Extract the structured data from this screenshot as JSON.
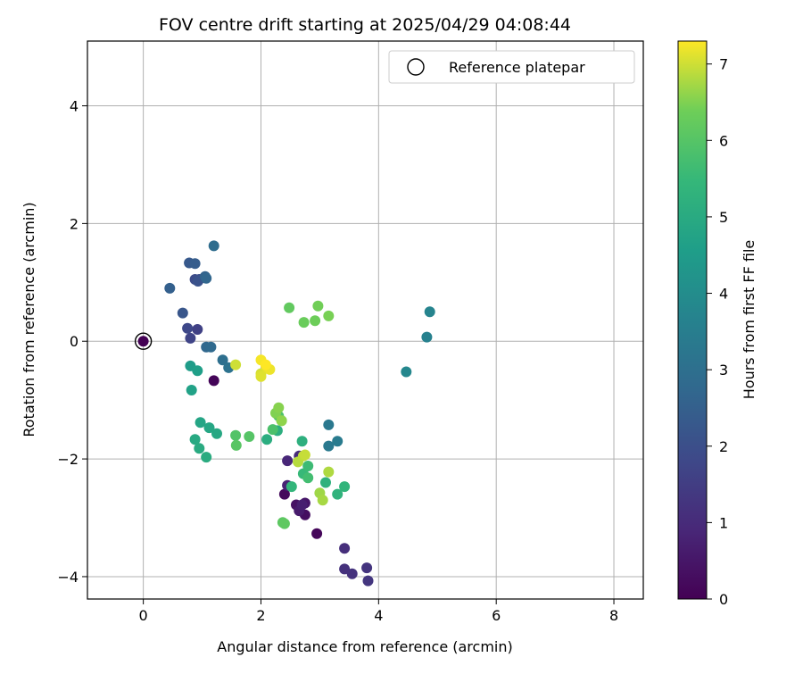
{
  "chart_data": {
    "type": "scatter",
    "title": "FOV centre drift starting at 2025/04/29 04:08:44",
    "xlabel": "Angular distance from reference (arcmin)",
    "ylabel": "Rotation from reference (arcmin)",
    "colorbar_label": "Hours from first FF file",
    "xlim": [
      -0.95,
      8.5
    ],
    "ylim": [
      -4.38,
      5.1
    ],
    "xticks": [
      0,
      2,
      4,
      6,
      8
    ],
    "yticks": [
      -4,
      -2,
      0,
      2,
      4
    ],
    "colorbar_range": [
      0,
      7.3
    ],
    "colorbar_ticks": [
      0,
      1,
      2,
      3,
      4,
      5,
      6,
      7
    ],
    "colormap": "viridis",
    "grid": true,
    "legend_position": "top-right",
    "legend": [
      {
        "label": "Reference platepar",
        "marker": "open-circle"
      }
    ],
    "reference_point": {
      "x": 0,
      "y": 0
    },
    "points": [
      {
        "x": 0.0,
        "y": 0.0,
        "t": 0.0
      },
      {
        "x": 1.2,
        "y": -0.67,
        "t": 0.1
      },
      {
        "x": 2.95,
        "y": -3.27,
        "t": 0.15
      },
      {
        "x": 2.4,
        "y": -2.6,
        "t": 0.2
      },
      {
        "x": 2.75,
        "y": -2.95,
        "t": 0.3
      },
      {
        "x": 2.6,
        "y": -2.78,
        "t": 0.4
      },
      {
        "x": 2.75,
        "y": -2.75,
        "t": 0.5
      },
      {
        "x": 2.65,
        "y": -2.88,
        "t": 0.6
      },
      {
        "x": 2.7,
        "y": -2.78,
        "t": 0.7
      },
      {
        "x": 2.45,
        "y": -2.45,
        "t": 0.8
      },
      {
        "x": 2.45,
        "y": -2.03,
        "t": 0.9
      },
      {
        "x": 2.65,
        "y": -1.95,
        "t": 1.0
      },
      {
        "x": 3.42,
        "y": -3.52,
        "t": 1.1
      },
      {
        "x": 3.42,
        "y": -3.87,
        "t": 1.15
      },
      {
        "x": 3.55,
        "y": -3.95,
        "t": 1.2
      },
      {
        "x": 3.8,
        "y": -3.85,
        "t": 1.25
      },
      {
        "x": 3.82,
        "y": -4.07,
        "t": 1.3
      },
      {
        "x": 0.92,
        "y": 0.2,
        "t": 1.6
      },
      {
        "x": 0.8,
        "y": 0.05,
        "t": 1.7
      },
      {
        "x": 0.75,
        "y": 0.22,
        "t": 1.8
      },
      {
        "x": 0.88,
        "y": 1.05,
        "t": 1.9
      },
      {
        "x": 0.95,
        "y": 1.05,
        "t": 2.0
      },
      {
        "x": 0.93,
        "y": 1.02,
        "t": 2.1
      },
      {
        "x": 0.67,
        "y": 0.48,
        "t": 2.2
      },
      {
        "x": 0.78,
        "y": 1.33,
        "t": 2.3
      },
      {
        "x": 0.88,
        "y": 1.32,
        "t": 2.4
      },
      {
        "x": 0.45,
        "y": 0.9,
        "t": 2.5
      },
      {
        "x": 1.05,
        "y": 1.1,
        "t": 2.6
      },
      {
        "x": 1.07,
        "y": 1.07,
        "t": 2.7
      },
      {
        "x": 1.07,
        "y": -0.1,
        "t": 2.75
      },
      {
        "x": 1.15,
        "y": -0.1,
        "t": 2.8
      },
      {
        "x": 1.2,
        "y": 1.62,
        "t": 2.9
      },
      {
        "x": 1.35,
        "y": -0.32,
        "t": 3.0
      },
      {
        "x": 1.45,
        "y": -0.45,
        "t": 3.1
      },
      {
        "x": 3.15,
        "y": -1.42,
        "t": 3.3
      },
      {
        "x": 3.15,
        "y": -1.78,
        "t": 3.35
      },
      {
        "x": 3.3,
        "y": -1.7,
        "t": 3.4
      },
      {
        "x": 4.82,
        "y": 0.07,
        "t": 3.6
      },
      {
        "x": 4.87,
        "y": 0.5,
        "t": 3.7
      },
      {
        "x": 4.47,
        "y": -0.52,
        "t": 3.8
      },
      {
        "x": 0.8,
        "y": -0.42,
        "t": 4.5
      },
      {
        "x": 0.92,
        "y": -0.5,
        "t": 4.6
      },
      {
        "x": 0.82,
        "y": -0.83,
        "t": 4.7
      },
      {
        "x": 0.97,
        "y": -1.38,
        "t": 4.8
      },
      {
        "x": 1.12,
        "y": -1.47,
        "t": 4.85
      },
      {
        "x": 1.25,
        "y": -1.57,
        "t": 4.9
      },
      {
        "x": 0.88,
        "y": -1.67,
        "t": 4.95
      },
      {
        "x": 0.95,
        "y": -1.82,
        "t": 5.0
      },
      {
        "x": 1.07,
        "y": -1.97,
        "t": 5.05
      },
      {
        "x": 2.1,
        "y": -1.67,
        "t": 5.1
      },
      {
        "x": 2.28,
        "y": -1.52,
        "t": 5.15
      },
      {
        "x": 2.7,
        "y": -1.7,
        "t": 5.2
      },
      {
        "x": 3.1,
        "y": -2.4,
        "t": 5.25
      },
      {
        "x": 3.3,
        "y": -2.6,
        "t": 5.3
      },
      {
        "x": 3.42,
        "y": -2.47,
        "t": 5.35
      },
      {
        "x": 2.52,
        "y": -2.47,
        "t": 5.4
      },
      {
        "x": 2.72,
        "y": -2.25,
        "t": 5.5
      },
      {
        "x": 2.8,
        "y": -2.12,
        "t": 5.6
      },
      {
        "x": 2.8,
        "y": -2.32,
        "t": 5.7
      },
      {
        "x": 2.35,
        "y": -1.35,
        "t": 5.8
      },
      {
        "x": 2.2,
        "y": -1.5,
        "t": 5.85
      },
      {
        "x": 2.3,
        "y": -1.27,
        "t": 5.9
      },
      {
        "x": 1.57,
        "y": -1.6,
        "t": 5.95
      },
      {
        "x": 1.8,
        "y": -1.62,
        "t": 6.0
      },
      {
        "x": 1.58,
        "y": -1.77,
        "t": 6.05
      },
      {
        "x": 2.37,
        "y": -3.08,
        "t": 6.1
      },
      {
        "x": 2.4,
        "y": -3.1,
        "t": 6.15
      },
      {
        "x": 2.48,
        "y": 0.57,
        "t": 6.2
      },
      {
        "x": 2.73,
        "y": 0.32,
        "t": 6.3
      },
      {
        "x": 2.92,
        "y": 0.35,
        "t": 6.35
      },
      {
        "x": 2.97,
        "y": 0.6,
        "t": 6.4
      },
      {
        "x": 3.15,
        "y": 0.43,
        "t": 6.45
      },
      {
        "x": 2.25,
        "y": -1.22,
        "t": 6.5
      },
      {
        "x": 2.3,
        "y": -1.13,
        "t": 6.55
      },
      {
        "x": 2.35,
        "y": -1.35,
        "t": 6.6
      },
      {
        "x": 3.0,
        "y": -2.58,
        "t": 6.7
      },
      {
        "x": 3.05,
        "y": -2.7,
        "t": 6.75
      },
      {
        "x": 3.15,
        "y": -2.22,
        "t": 6.8
      },
      {
        "x": 2.63,
        "y": -2.05,
        "t": 6.85
      },
      {
        "x": 2.72,
        "y": -1.95,
        "t": 6.9
      },
      {
        "x": 2.75,
        "y": -1.93,
        "t": 6.95
      },
      {
        "x": 1.57,
        "y": -0.4,
        "t": 7.0
      },
      {
        "x": 2.0,
        "y": -0.55,
        "t": 7.05
      },
      {
        "x": 2.0,
        "y": -0.6,
        "t": 7.1
      },
      {
        "x": 2.1,
        "y": -0.45,
        "t": 7.15
      },
      {
        "x": 2.15,
        "y": -0.48,
        "t": 7.2
      },
      {
        "x": 2.0,
        "y": -0.32,
        "t": 7.25
      },
      {
        "x": 2.08,
        "y": -0.4,
        "t": 7.3
      }
    ]
  }
}
